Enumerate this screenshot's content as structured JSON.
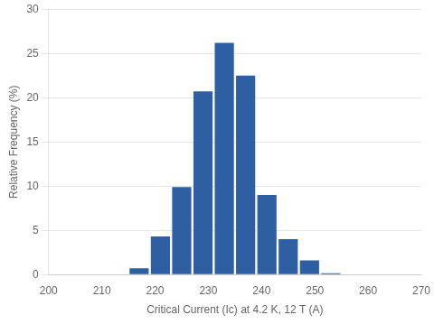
{
  "chart_data": {
    "type": "bar",
    "x": [
      217,
      221,
      225,
      229,
      233,
      237,
      241,
      245,
      249,
      253
    ],
    "values": [
      0.7,
      4.3,
      9.9,
      20.7,
      26.2,
      22.5,
      9.0,
      4.0,
      1.6,
      0.15
    ],
    "color": "#2E5FA3",
    "xlabel": "Critical Current (Ic) at 4.2 K, 12 T (A)",
    "ylabel": "Relative Frequency (%)",
    "xlim": [
      200,
      270
    ],
    "ylim": [
      0,
      30
    ],
    "xticks": [
      200,
      210,
      220,
      230,
      240,
      250,
      260,
      270
    ],
    "yticks": [
      0,
      5,
      10,
      15,
      20,
      25,
      30
    ],
    "grid": true
  }
}
